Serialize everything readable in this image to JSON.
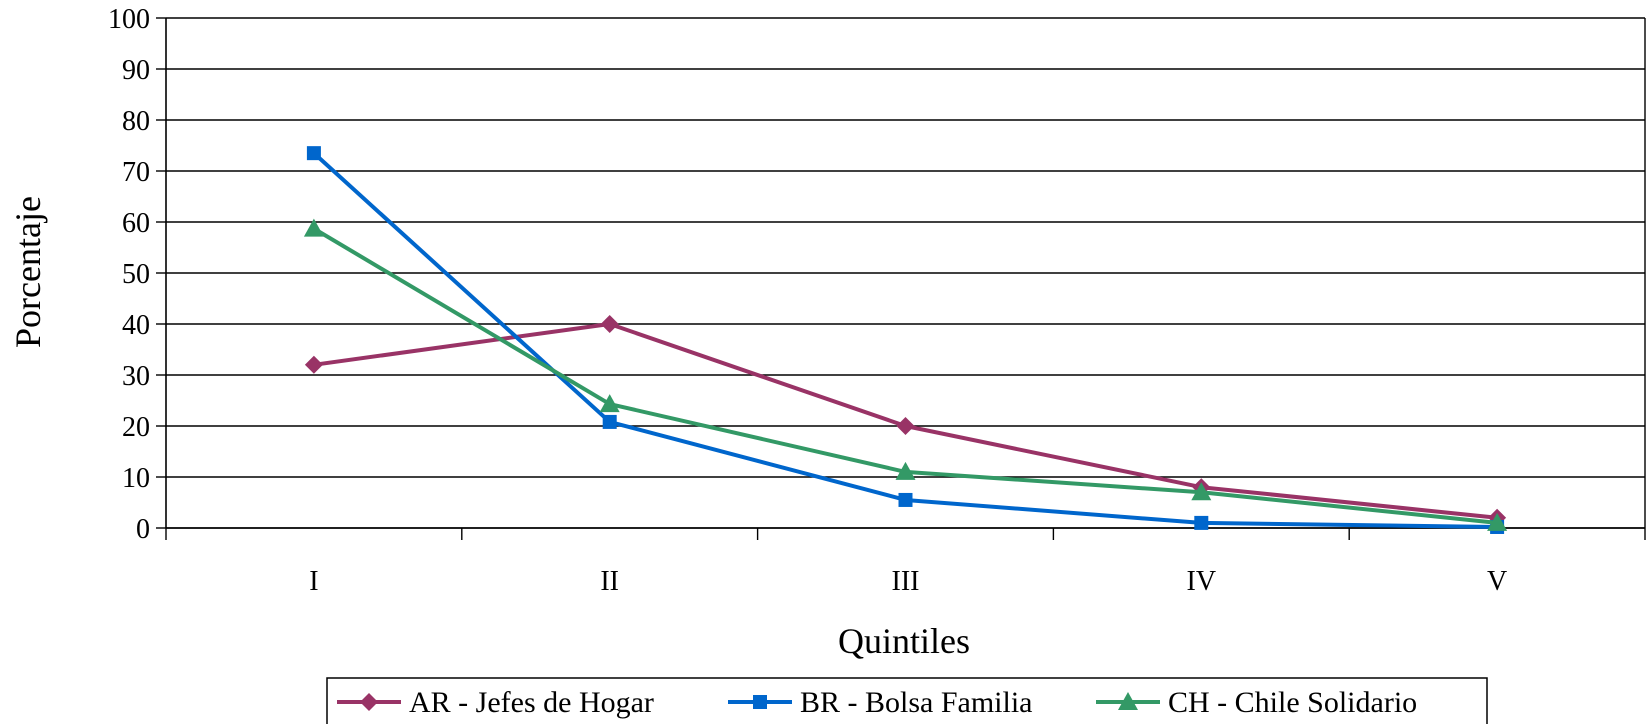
{
  "chart_data": {
    "type": "line",
    "title": "",
    "xlabel": "Quintiles",
    "ylabel": "Porcentaje",
    "categories": [
      "I",
      "II",
      "III",
      "IV",
      "V"
    ],
    "ylim": [
      0,
      100
    ],
    "yticks": [
      "0",
      "10",
      "20",
      "30",
      "40",
      "50",
      "60",
      "70",
      "80",
      "90",
      "100"
    ],
    "grid": true,
    "legend_position": "bottom",
    "series": [
      {
        "name": "AR - Jefes de Hogar",
        "values": [
          32,
          40,
          20,
          8,
          2
        ],
        "color": "#993366",
        "marker": "diamond"
      },
      {
        "name": "BR - Bolsa Familia",
        "values": [
          73.5,
          20.8,
          5.5,
          1,
          0.2
        ],
        "color": "#0066CC",
        "marker": "square"
      },
      {
        "name": "CH - Chile Solidario",
        "values": [
          58.7,
          24.3,
          11,
          7,
          1
        ],
        "color": "#339966",
        "marker": "triangle"
      }
    ]
  }
}
